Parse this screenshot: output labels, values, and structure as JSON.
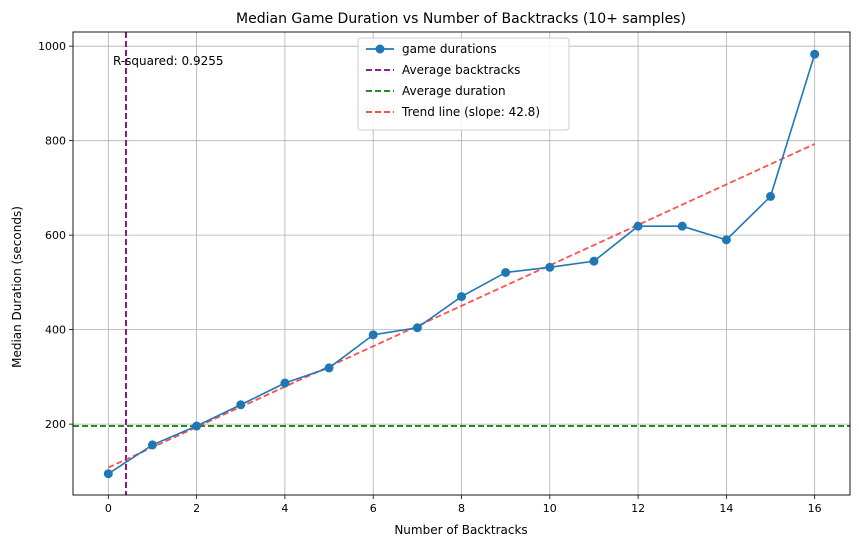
{
  "chart_data": {
    "type": "line",
    "title": "Median Game Duration vs Number of Backtracks (10+ samples)",
    "xlabel": "Number of Backtracks",
    "ylabel": "Median Duration (seconds)",
    "xlim": [
      -0.8,
      16.8
    ],
    "ylim": [
      50,
      1030
    ],
    "xticks": [
      0,
      2,
      4,
      6,
      8,
      10,
      12,
      14,
      16
    ],
    "yticks": [
      200,
      400,
      600,
      800,
      1000
    ],
    "grid": true,
    "legend_position": "upper-center",
    "series": [
      {
        "name": "game durations",
        "color": "#1f77b4",
        "x": [
          0,
          1,
          2,
          3,
          4,
          5,
          6,
          7,
          8,
          9,
          10,
          11,
          12,
          13,
          14,
          15,
          16
        ],
        "y": [
          95,
          156,
          196,
          241,
          287,
          319,
          389,
          404,
          470,
          521,
          532,
          545,
          619,
          619,
          590,
          682,
          983
        ]
      }
    ],
    "reference_lines": [
      {
        "name": "Average backtracks",
        "orientation": "vertical",
        "value": 0.4,
        "color": "#800080",
        "style": "dashed"
      },
      {
        "name": "Average duration",
        "orientation": "horizontal",
        "value": 196,
        "color": "#008000",
        "style": "dashed"
      }
    ],
    "trend_line": {
      "name": "Trend line (slope: 42.8)",
      "color": "#ff3333",
      "style": "dashed",
      "x": [
        0,
        16
      ],
      "y": [
        108,
        793
      ]
    },
    "annotation": "R-squared: 0.9255"
  }
}
